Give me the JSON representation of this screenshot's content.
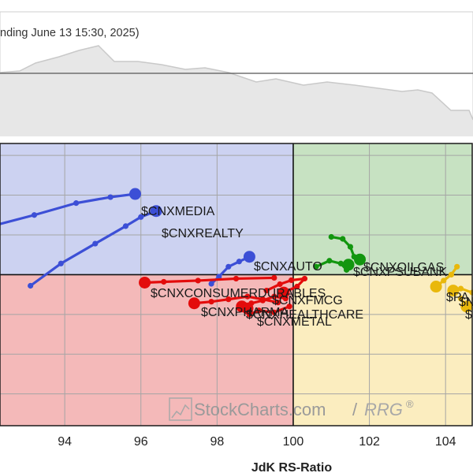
{
  "header": {
    "subtitle": "nding June 13 15:30, 2025)"
  },
  "colors": {
    "lagging": "#f4b9b9",
    "weakening": "#fbedbf",
    "leading": "#c7e2c2",
    "improving": "#ccd2f1",
    "blue": "#3c4fd6",
    "red": "#e30c0c",
    "green": "#12960f",
    "yellow": "#e9b80c",
    "mini_fill": "#e7e7e7",
    "mini_line": "#c9c9c9"
  },
  "watermark": {
    "main": "StockCharts.com",
    "sep": "/",
    "rrg": "RRG",
    "reg": "®"
  },
  "chart_data": {
    "type": "scatter",
    "xlabel": "JdK RS-Ratio",
    "x_ticks": [
      94,
      96,
      98,
      100,
      102,
      104
    ],
    "xlim": [
      92.3,
      104.7
    ],
    "ylim": [
      96.2,
      103.3
    ],
    "center": [
      100,
      100
    ],
    "grid": true,
    "series": [
      {
        "name": "$CNXMEDIA",
        "color": "blue",
        "points": [
          [
            92.0,
            101.2
          ],
          [
            93.2,
            101.5
          ],
          [
            94.3,
            101.8
          ],
          [
            95.2,
            101.95
          ],
          [
            95.85,
            102.03
          ]
        ]
      },
      {
        "name": "$CNXREALTY",
        "color": "blue",
        "points": [
          [
            93.1,
            99.72
          ],
          [
            93.9,
            100.28
          ],
          [
            94.8,
            100.78
          ],
          [
            95.6,
            101.22
          ],
          [
            96.0,
            101.45
          ],
          [
            96.4,
            101.6
          ]
        ]
      },
      {
        "name": "$CNXAUTO",
        "color": "blue",
        "points": [
          [
            97.85,
            99.77
          ],
          [
            98.05,
            99.95
          ],
          [
            98.3,
            100.2
          ],
          [
            98.58,
            100.33
          ],
          [
            98.85,
            100.45
          ]
        ]
      },
      {
        "name": "$CNXCONSUMERDURABLES",
        "color": "red",
        "points": [
          [
            99.5,
            99.92
          ],
          [
            98.5,
            99.9
          ],
          [
            97.5,
            99.85
          ],
          [
            96.6,
            99.82
          ],
          [
            96.1,
            99.8
          ]
        ]
      },
      {
        "name": "$CNXFMCG",
        "color": "red",
        "points": [
          [
            99.3,
            99.6
          ],
          [
            99.65,
            99.76
          ],
          [
            99.95,
            99.86
          ],
          [
            100.3,
            99.9
          ],
          [
            100.1,
            99.7
          ],
          [
            99.75,
            99.55
          ]
        ]
      },
      {
        "name": "$CNXPHARMA",
        "color": "red",
        "points": [
          [
            99.6,
            99.3
          ],
          [
            99.2,
            99.38
          ],
          [
            98.8,
            99.45
          ],
          [
            98.3,
            99.38
          ],
          [
            97.85,
            99.32
          ],
          [
            97.4,
            99.28
          ]
        ]
      },
      {
        "name": "$CNXHEALTHCARE",
        "color": "red",
        "points": [
          [
            99.8,
            99.4
          ],
          [
            99.5,
            99.45
          ],
          [
            99.2,
            99.35
          ],
          [
            98.9,
            99.28
          ],
          [
            98.65,
            99.2
          ]
        ]
      },
      {
        "name": "$CNXMETAL",
        "color": "red",
        "points": [
          [
            99.9,
            99.2
          ],
          [
            99.5,
            99.05
          ],
          [
            99.1,
            99.1
          ],
          [
            98.85,
            99.0
          ],
          [
            98.8,
            99.15
          ]
        ]
      },
      {
        "name": "$CNXOILGAS",
        "color": "green",
        "points": [
          [
            101.0,
            100.95
          ],
          [
            101.3,
            100.9
          ],
          [
            101.5,
            100.7
          ],
          [
            101.6,
            100.45
          ],
          [
            101.75,
            100.38
          ]
        ]
      },
      {
        "name": "$CNXPSUBANK",
        "color": "green",
        "points": [
          [
            100.6,
            100.2
          ],
          [
            100.95,
            100.35
          ],
          [
            101.25,
            100.28
          ],
          [
            101.4,
            100.12
          ],
          [
            101.45,
            100.25
          ]
        ]
      },
      {
        "name": "$PA...",
        "color": "yellow",
        "points": [
          [
            104.3,
            100.2
          ],
          [
            104.15,
            100.0
          ],
          [
            103.95,
            99.85
          ],
          [
            103.75,
            99.7
          ]
        ]
      },
      {
        "name": "$N...",
        "color": "yellow",
        "points": [
          [
            104.7,
            99.55
          ],
          [
            104.4,
            99.65
          ],
          [
            104.2,
            99.6
          ]
        ]
      },
      {
        "name": "$...",
        "color": "yellow",
        "points": [
          [
            104.4,
            99.4
          ],
          [
            104.5,
            99.25
          ],
          [
            104.55,
            99.2
          ]
        ]
      }
    ],
    "label_texts": {
      "media": "$CNXMEDIA",
      "realty": "$CNXREALTY",
      "auto": "$CNXAUTO",
      "consumer": "$CNXCONSUMERDURABLES",
      "fmcg": "$CNXFMCG",
      "pharma": "$CNXPHARMA",
      "healthcare": "$CNXHEALTHCARE",
      "metal": "$CNXMETAL",
      "oilgas": "$CNXOILGAS",
      "psubank": "$CNXPSUBANK",
      "pa": "$PA",
      "n": "$N",
      "s": "$"
    }
  }
}
